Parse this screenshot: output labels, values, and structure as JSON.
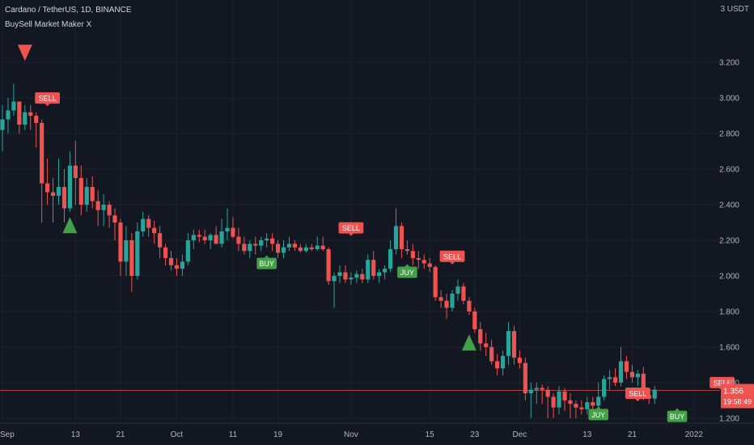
{
  "header": {
    "symbol": "Cardano / TetherUS, 1D, BINANCE",
    "indicator": "BuySell Market Maker X",
    "currency": "3 USDT"
  },
  "price_tag": {
    "price": "1.356",
    "countdown": "19:58:49"
  },
  "colors": {
    "bg": "#131722",
    "up": "#26a69a",
    "down": "#ef5350",
    "grid": "#1e222d",
    "text": "#b2b5be",
    "buy": "#43a047",
    "sell": "#ef5350"
  },
  "chart_data": {
    "type": "candlestick",
    "title": "Cardano / TetherUS, 1D, BINANCE",
    "ylim": [
      1.14,
      3.36
    ],
    "y_ticks": [
      "1.200",
      "1.400",
      "1.600",
      "1.800",
      "2.000",
      "2.200",
      "2.400",
      "2.600",
      "2.800",
      "3.000",
      "3.200"
    ],
    "x_ticks": [
      {
        "day": 0,
        "label": "Sep"
      },
      {
        "day": 13,
        "label": "13"
      },
      {
        "day": 21,
        "label": "21"
      },
      {
        "day": 31,
        "label": "Oct"
      },
      {
        "day": 41,
        "label": "11"
      },
      {
        "day": 49,
        "label": "19"
      },
      {
        "day": 62,
        "label": "Nov"
      },
      {
        "day": 76,
        "label": "15"
      },
      {
        "day": 84,
        "label": "23"
      },
      {
        "day": 92,
        "label": "Dec"
      },
      {
        "day": 104,
        "label": "13"
      },
      {
        "day": 112,
        "label": "21"
      },
      {
        "day": 123,
        "label": "2022"
      }
    ],
    "current_price": 1.356,
    "candles": [
      [
        2.82,
        2.96,
        2.7,
        2.88
      ],
      [
        2.88,
        3.0,
        2.8,
        2.93
      ],
      [
        2.93,
        3.08,
        2.9,
        2.98
      ],
      [
        2.98,
        2.98,
        2.8,
        2.85
      ],
      [
        2.85,
        2.96,
        2.82,
        2.92
      ],
      [
        2.92,
        2.96,
        2.82,
        2.9
      ],
      [
        2.9,
        2.92,
        2.72,
        2.86
      ],
      [
        2.86,
        2.88,
        2.3,
        2.52
      ],
      [
        2.52,
        2.66,
        2.4,
        2.47
      ],
      [
        2.47,
        2.55,
        2.3,
        2.45
      ],
      [
        2.45,
        2.66,
        2.4,
        2.5
      ],
      [
        2.5,
        2.6,
        2.3,
        2.38
      ],
      [
        2.38,
        2.7,
        2.36,
        2.62
      ],
      [
        2.62,
        2.76,
        2.4,
        2.55
      ],
      [
        2.55,
        2.62,
        2.34,
        2.4
      ],
      [
        2.4,
        2.55,
        2.36,
        2.5
      ],
      [
        2.5,
        2.56,
        2.38,
        2.42
      ],
      [
        2.42,
        2.48,
        2.28,
        2.37
      ],
      [
        2.37,
        2.46,
        2.28,
        2.4
      ],
      [
        2.4,
        2.42,
        2.27,
        2.34
      ],
      [
        2.34,
        2.38,
        2.2,
        2.3
      ],
      [
        2.3,
        2.32,
        2.0,
        2.08
      ],
      [
        2.08,
        2.28,
        2.0,
        2.2
      ],
      [
        2.2,
        2.24,
        1.91,
        2.0
      ],
      [
        2.0,
        2.3,
        1.98,
        2.25
      ],
      [
        2.25,
        2.36,
        2.22,
        2.32
      ],
      [
        2.32,
        2.34,
        2.22,
        2.27
      ],
      [
        2.27,
        2.31,
        2.18,
        2.24
      ],
      [
        2.24,
        2.28,
        2.1,
        2.16
      ],
      [
        2.16,
        2.18,
        2.06,
        2.1
      ],
      [
        2.1,
        2.14,
        2.03,
        2.06
      ],
      [
        2.06,
        2.1,
        2.0,
        2.04
      ],
      [
        2.04,
        2.12,
        2.0,
        2.08
      ],
      [
        2.08,
        2.24,
        2.06,
        2.2
      ],
      [
        2.2,
        2.26,
        2.15,
        2.23
      ],
      [
        2.23,
        2.26,
        2.19,
        2.22
      ],
      [
        2.22,
        2.26,
        2.18,
        2.2
      ],
      [
        2.2,
        2.24,
        2.15,
        2.23
      ],
      [
        2.23,
        2.28,
        2.2,
        2.18
      ],
      [
        2.18,
        2.32,
        2.16,
        2.25
      ],
      [
        2.25,
        2.38,
        2.2,
        2.27
      ],
      [
        2.27,
        2.33,
        2.21,
        2.22
      ],
      [
        2.22,
        2.27,
        2.14,
        2.18
      ],
      [
        2.18,
        2.22,
        2.12,
        2.14
      ],
      [
        2.14,
        2.2,
        2.1,
        2.18
      ],
      [
        2.18,
        2.22,
        2.12,
        2.17
      ],
      [
        2.17,
        2.22,
        2.14,
        2.2
      ],
      [
        2.2,
        2.24,
        2.16,
        2.21
      ],
      [
        2.21,
        2.24,
        2.14,
        2.18
      ],
      [
        2.18,
        2.2,
        2.1,
        2.13
      ],
      [
        2.13,
        2.2,
        2.1,
        2.16
      ],
      [
        2.16,
        2.22,
        2.14,
        2.18
      ],
      [
        2.18,
        2.2,
        2.14,
        2.16
      ],
      [
        2.16,
        2.18,
        2.13,
        2.14
      ],
      [
        2.14,
        2.18,
        2.13,
        2.16
      ],
      [
        2.16,
        2.18,
        2.14,
        2.15
      ],
      [
        2.15,
        2.22,
        2.14,
        2.17
      ],
      [
        2.17,
        2.22,
        2.14,
        2.15
      ],
      [
        2.15,
        2.16,
        1.95,
        1.97
      ],
      [
        1.97,
        2.02,
        1.82,
        2.0
      ],
      [
        2.0,
        2.06,
        1.96,
        2.02
      ],
      [
        2.02,
        2.06,
        1.96,
        1.98
      ],
      [
        1.98,
        2.02,
        1.95,
        1.99
      ],
      [
        1.99,
        2.03,
        1.96,
        2.01
      ],
      [
        2.01,
        2.04,
        1.96,
        1.98
      ],
      [
        1.98,
        2.12,
        1.96,
        2.09
      ],
      [
        2.09,
        2.14,
        1.98,
        2.0
      ],
      [
        2.0,
        2.04,
        1.96,
        2.02
      ],
      [
        2.02,
        2.06,
        1.98,
        2.04
      ],
      [
        2.04,
        2.2,
        2.02,
        2.15
      ],
      [
        2.15,
        2.38,
        2.12,
        2.28
      ],
      [
        2.28,
        2.3,
        2.1,
        2.15
      ],
      [
        2.15,
        2.2,
        2.12,
        2.14
      ],
      [
        2.14,
        2.18,
        2.06,
        2.1
      ],
      [
        2.1,
        2.14,
        2.04,
        2.09
      ],
      [
        2.09,
        2.12,
        2.04,
        2.07
      ],
      [
        2.07,
        2.1,
        2.02,
        2.05
      ],
      [
        2.05,
        2.06,
        1.86,
        1.88
      ],
      [
        1.88,
        1.92,
        1.82,
        1.86
      ],
      [
        1.86,
        1.9,
        1.76,
        1.82
      ],
      [
        1.82,
        1.92,
        1.8,
        1.9
      ],
      [
        1.9,
        1.98,
        1.86,
        1.94
      ],
      [
        1.94,
        1.96,
        1.84,
        1.86
      ],
      [
        1.86,
        1.88,
        1.78,
        1.8
      ],
      [
        1.8,
        1.82,
        1.68,
        1.7
      ],
      [
        1.7,
        1.74,
        1.58,
        1.62
      ],
      [
        1.62,
        1.68,
        1.55,
        1.6
      ],
      [
        1.6,
        1.64,
        1.5,
        1.52
      ],
      [
        1.52,
        1.56,
        1.44,
        1.48
      ],
      [
        1.48,
        1.58,
        1.44,
        1.55
      ],
      [
        1.55,
        1.74,
        1.5,
        1.69
      ],
      [
        1.69,
        1.72,
        1.5,
        1.54
      ],
      [
        1.54,
        1.58,
        1.48,
        1.51
      ],
      [
        1.51,
        1.54,
        1.3,
        1.34
      ],
      [
        1.34,
        1.4,
        1.2,
        1.36
      ],
      [
        1.36,
        1.4,
        1.28,
        1.37
      ],
      [
        1.37,
        1.39,
        1.28,
        1.36
      ],
      [
        1.36,
        1.38,
        1.2,
        1.32
      ],
      [
        1.32,
        1.34,
        1.2,
        1.26
      ],
      [
        1.26,
        1.38,
        1.22,
        1.35
      ],
      [
        1.35,
        1.37,
        1.24,
        1.3
      ],
      [
        1.3,
        1.34,
        1.2,
        1.28
      ],
      [
        1.28,
        1.3,
        1.2,
        1.26
      ],
      [
        1.26,
        1.3,
        1.22,
        1.25
      ],
      [
        1.25,
        1.32,
        1.22,
        1.29
      ],
      [
        1.29,
        1.32,
        1.22,
        1.27
      ],
      [
        1.27,
        1.4,
        1.24,
        1.32
      ],
      [
        1.32,
        1.44,
        1.3,
        1.42
      ],
      [
        1.42,
        1.47,
        1.36,
        1.43
      ],
      [
        1.43,
        1.48,
        1.38,
        1.4
      ],
      [
        1.4,
        1.6,
        1.38,
        1.52
      ],
      [
        1.52,
        1.55,
        1.42,
        1.46
      ],
      [
        1.46,
        1.5,
        1.4,
        1.43
      ],
      [
        1.43,
        1.47,
        1.38,
        1.45
      ],
      [
        1.45,
        1.49,
        1.3,
        1.33
      ],
      [
        1.33,
        1.37,
        1.28,
        1.31
      ],
      [
        1.31,
        1.38,
        1.28,
        1.36
      ]
    ],
    "signals": [
      {
        "day": 4,
        "type": "marker-down",
        "price": 3.3,
        "label": ""
      },
      {
        "day": 8,
        "type": "sell",
        "price": 3.0,
        "label": "SELL"
      },
      {
        "day": 12,
        "type": "marker-up",
        "price": 2.24,
        "label": ""
      },
      {
        "day": 47,
        "type": "buy",
        "price": 2.07,
        "label": "BUY"
      },
      {
        "day": 62,
        "type": "sell",
        "price": 2.27,
        "label": "SELL"
      },
      {
        "day": 72,
        "type": "buy",
        "price": 2.02,
        "label": "JUY"
      },
      {
        "day": 80,
        "type": "sell",
        "price": 2.11,
        "label": "SELL"
      },
      {
        "day": 83,
        "type": "marker-up",
        "price": 1.58,
        "label": ""
      },
      {
        "day": 106,
        "type": "buy",
        "price": 1.22,
        "label": "JUY"
      },
      {
        "day": 113,
        "type": "sell",
        "price": 1.34,
        "label": "SELL"
      },
      {
        "day": 120,
        "type": "buy",
        "price": 1.21,
        "label": "BUY"
      },
      {
        "day": 128,
        "type": "sell",
        "price": 1.4,
        "label": "SELL"
      }
    ]
  }
}
